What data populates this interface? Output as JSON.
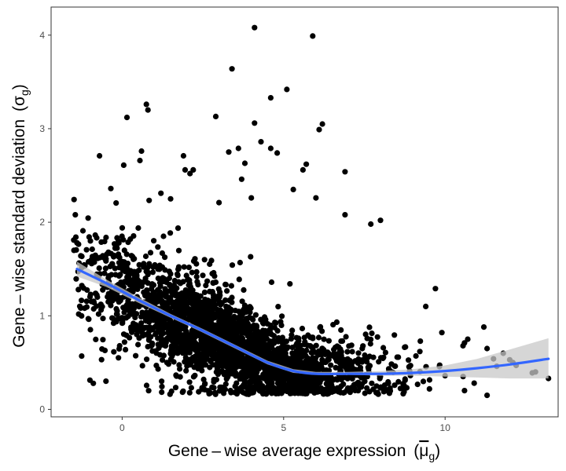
{
  "chart_data": {
    "type": "scatter",
    "title": "",
    "xlabel": "Gene – wise average expression",
    "xlabel_symbol": "μ",
    "xlabel_subscript": "g",
    "ylabel": "Gene – wise standard deviation",
    "ylabel_symbol": "σ",
    "ylabel_subscript": "g",
    "xlim": [
      -2.2,
      13.5
    ],
    "ylim": [
      -0.08,
      4.3
    ],
    "x_ticks": [
      0,
      5,
      10
    ],
    "y_ticks": [
      0,
      1,
      2,
      3,
      4
    ],
    "grid": false,
    "legend": "none",
    "point_color": "#000000",
    "smooth_color": "#3366ff",
    "ribbon_color": "#c8c8c8",
    "dense_cloud_note": "thousands of genes; dense core approximated",
    "outliers": [
      {
        "x": -1.5,
        "y": 1.81
      },
      {
        "x": -1.4,
        "y": 1.78
      },
      {
        "x": -0.7,
        "y": 2.71
      },
      {
        "x": -0.35,
        "y": 2.36
      },
      {
        "x": 0.05,
        "y": 2.61
      },
      {
        "x": 0.15,
        "y": 3.12
      },
      {
        "x": 0.55,
        "y": 2.66
      },
      {
        "x": 0.6,
        "y": 2.76
      },
      {
        "x": 0.75,
        "y": 3.26
      },
      {
        "x": 0.8,
        "y": 3.2
      },
      {
        "x": 1.2,
        "y": 2.31
      },
      {
        "x": 1.5,
        "y": 2.25
      },
      {
        "x": 1.9,
        "y": 2.71
      },
      {
        "x": 1.95,
        "y": 2.56
      },
      {
        "x": 2.1,
        "y": 2.52
      },
      {
        "x": 2.2,
        "y": 2.56
      },
      {
        "x": 2.9,
        "y": 3.13
      },
      {
        "x": 3.0,
        "y": 2.21
      },
      {
        "x": 3.3,
        "y": 2.75
      },
      {
        "x": 3.4,
        "y": 3.64
      },
      {
        "x": 3.6,
        "y": 2.79
      },
      {
        "x": 3.7,
        "y": 2.46
      },
      {
        "x": 3.8,
        "y": 2.63
      },
      {
        "x": 4.0,
        "y": 2.26
      },
      {
        "x": 4.1,
        "y": 4.08
      },
      {
        "x": 4.1,
        "y": 3.06
      },
      {
        "x": 4.3,
        "y": 2.86
      },
      {
        "x": 4.6,
        "y": 2.79
      },
      {
        "x": 4.6,
        "y": 3.33
      },
      {
        "x": 4.8,
        "y": 2.74
      },
      {
        "x": 5.1,
        "y": 3.42
      },
      {
        "x": 5.3,
        "y": 2.35
      },
      {
        "x": 5.7,
        "y": 2.62
      },
      {
        "x": 5.6,
        "y": 2.56
      },
      {
        "x": 5.9,
        "y": 3.99
      },
      {
        "x": 6.1,
        "y": 2.99
      },
      {
        "x": 6.2,
        "y": 3.05
      },
      {
        "x": 6.0,
        "y": 2.26
      },
      {
        "x": 6.9,
        "y": 2.54
      },
      {
        "x": 6.9,
        "y": 2.08
      },
      {
        "x": 8.0,
        "y": 2.02
      },
      {
        "x": 7.7,
        "y": 1.98
      },
      {
        "x": 9.7,
        "y": 1.29
      },
      {
        "x": 9.4,
        "y": 1.1
      },
      {
        "x": 9.9,
        "y": 0.82
      },
      {
        "x": 10.6,
        "y": 0.71
      },
      {
        "x": 10.7,
        "y": 0.75
      },
      {
        "x": 11.2,
        "y": 0.88
      },
      {
        "x": 11.3,
        "y": 0.65
      },
      {
        "x": 11.5,
        "y": 0.54
      },
      {
        "x": 11.6,
        "y": 0.46
      },
      {
        "x": 11.8,
        "y": 0.6
      },
      {
        "x": 12.0,
        "y": 0.53
      },
      {
        "x": 12.1,
        "y": 0.5
      },
      {
        "x": 12.2,
        "y": 0.47
      },
      {
        "x": 11.3,
        "y": 0.15
      },
      {
        "x": 12.7,
        "y": 0.39
      },
      {
        "x": 13.2,
        "y": 0.33
      },
      {
        "x": 10.9,
        "y": 0.28
      },
      {
        "x": 10.6,
        "y": 0.2
      },
      {
        "x": 12.8,
        "y": 0.4
      }
    ],
    "smooth": [
      {
        "x": -1.4,
        "y": 1.5,
        "lo": 1.42,
        "hi": 1.58
      },
      {
        "x": -0.5,
        "y": 1.35,
        "lo": 1.31,
        "hi": 1.39
      },
      {
        "x": 0.5,
        "y": 1.17,
        "lo": 1.14,
        "hi": 1.2
      },
      {
        "x": 1.5,
        "y": 1.0,
        "lo": 0.98,
        "hi": 1.02
      },
      {
        "x": 2.5,
        "y": 0.84,
        "lo": 0.82,
        "hi": 0.86
      },
      {
        "x": 3.5,
        "y": 0.67,
        "lo": 0.65,
        "hi": 0.69
      },
      {
        "x": 4.5,
        "y": 0.5,
        "lo": 0.48,
        "hi": 0.52
      },
      {
        "x": 5.3,
        "y": 0.41,
        "lo": 0.39,
        "hi": 0.43
      },
      {
        "x": 6.0,
        "y": 0.38,
        "lo": 0.37,
        "hi": 0.4
      },
      {
        "x": 7.0,
        "y": 0.38,
        "lo": 0.37,
        "hi": 0.4
      },
      {
        "x": 8.0,
        "y": 0.38,
        "lo": 0.36,
        "hi": 0.41
      },
      {
        "x": 9.0,
        "y": 0.39,
        "lo": 0.36,
        "hi": 0.43
      },
      {
        "x": 10.0,
        "y": 0.41,
        "lo": 0.35,
        "hi": 0.47
      },
      {
        "x": 11.0,
        "y": 0.44,
        "lo": 0.34,
        "hi": 0.54
      },
      {
        "x": 12.0,
        "y": 0.48,
        "lo": 0.33,
        "hi": 0.64
      },
      {
        "x": 13.2,
        "y": 0.54,
        "lo": 0.33,
        "hi": 0.76
      }
    ]
  }
}
